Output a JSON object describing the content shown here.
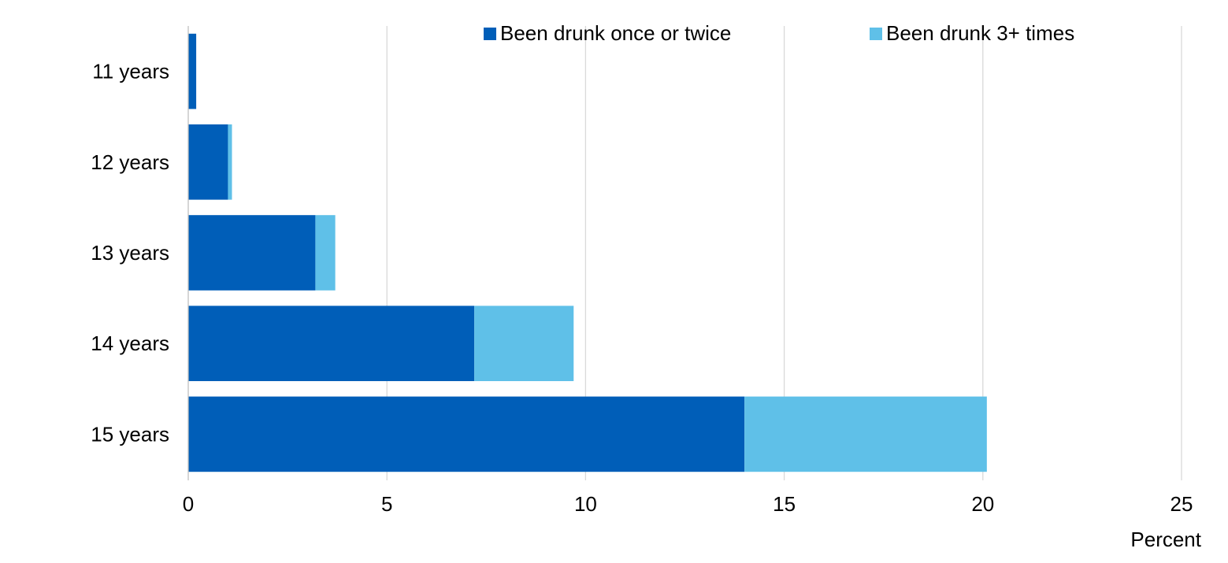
{
  "chart_data": {
    "type": "bar",
    "orientation": "horizontal",
    "stacked": true,
    "categories": [
      "11 years",
      "12 years",
      "13 years",
      "14 years",
      "15 years"
    ],
    "series": [
      {
        "name": "Been drunk once or twice",
        "color": "#005eb8",
        "values": [
          0.2,
          1.0,
          3.2,
          7.2,
          14.0
        ]
      },
      {
        "name": "Been drunk 3+ times",
        "color": "#5fc0e8",
        "values": [
          0.0,
          0.1,
          0.5,
          2.5,
          6.1
        ]
      }
    ],
    "xlim": [
      0,
      25
    ],
    "xticks": [
      0,
      5,
      10,
      15,
      20,
      25
    ],
    "xlabel": "Percent",
    "ylabel": "",
    "title": "",
    "grid": "vertical",
    "legend": "top-right"
  }
}
